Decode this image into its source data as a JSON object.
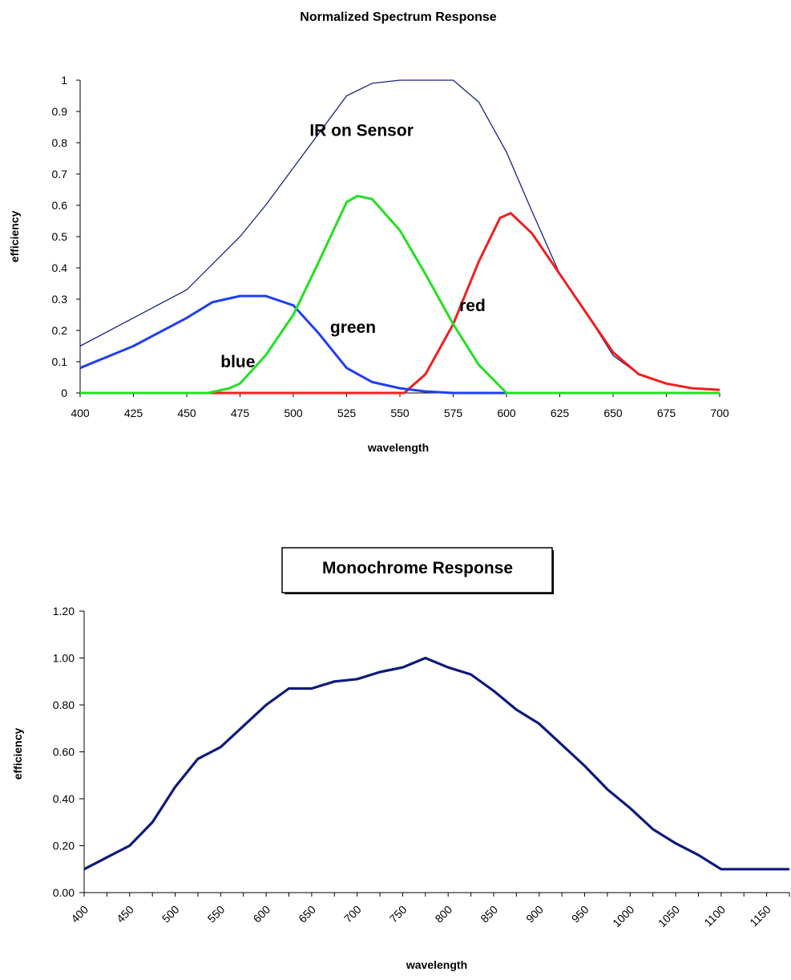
{
  "chart_data": [
    {
      "type": "line",
      "title": "Normalized Spectrum Response",
      "xlabel": "wavelength",
      "ylabel": "efficiency",
      "xlim": [
        400,
        700
      ],
      "ylim": [
        0,
        1
      ],
      "xticks": [
        "400",
        "425",
        "450",
        "475",
        "500",
        "525",
        "550",
        "575",
        "600",
        "625",
        "650",
        "675",
        "700"
      ],
      "yticks": [
        "0",
        "0.1",
        "0.2",
        "0.3",
        "0.4",
        "0.5",
        "0.6",
        "0.7",
        "0.8",
        "0.9",
        "1"
      ],
      "grid": false,
      "legend": "none",
      "series": [
        {
          "name": "IR on Sensor",
          "color": "#1a237e",
          "points": [
            [
              400,
              0.15
            ],
            [
              425,
              0.24
            ],
            [
              450,
              0.33
            ],
            [
              475,
              0.5
            ],
            [
              487,
              0.6
            ],
            [
              500,
              0.72
            ],
            [
              512,
              0.83
            ],
            [
              525,
              0.95
            ],
            [
              537,
              0.99
            ],
            [
              550,
              1.0
            ],
            [
              562,
              1.0
            ],
            [
              575,
              1.0
            ],
            [
              587,
              0.93
            ],
            [
              600,
              0.77
            ],
            [
              612,
              0.58
            ],
            [
              625,
              0.38
            ],
            [
              637,
              0.26
            ],
            [
              650,
              0.12
            ],
            [
              662,
              0.06
            ],
            [
              675,
              0.03
            ],
            [
              687,
              0.015
            ],
            [
              700,
              0.01
            ]
          ]
        },
        {
          "name": "blue",
          "color": "#1f3ff0",
          "points": [
            [
              400,
              0.08
            ],
            [
              425,
              0.15
            ],
            [
              450,
              0.24
            ],
            [
              462,
              0.29
            ],
            [
              475,
              0.31
            ],
            [
              487,
              0.31
            ],
            [
              500,
              0.28
            ],
            [
              512,
              0.19
            ],
            [
              525,
              0.08
            ],
            [
              537,
              0.035
            ],
            [
              550,
              0.015
            ],
            [
              562,
              0.005
            ],
            [
              575,
              0
            ],
            [
              600,
              0
            ],
            [
              700,
              0
            ]
          ]
        },
        {
          "name": "green",
          "color": "#22e022",
          "points": [
            [
              400,
              0
            ],
            [
              460,
              0
            ],
            [
              470,
              0.015
            ],
            [
              475,
              0.03
            ],
            [
              487,
              0.12
            ],
            [
              500,
              0.25
            ],
            [
              512,
              0.42
            ],
            [
              525,
              0.61
            ],
            [
              530,
              0.63
            ],
            [
              537,
              0.62
            ],
            [
              550,
              0.52
            ],
            [
              562,
              0.38
            ],
            [
              575,
              0.22
            ],
            [
              587,
              0.09
            ],
            [
              600,
              0
            ],
            [
              700,
              0
            ]
          ]
        },
        {
          "name": "red",
          "color": "#f01f1f",
          "points": [
            [
              400,
              0
            ],
            [
              552,
              0
            ],
            [
              562,
              0.06
            ],
            [
              575,
              0.22
            ],
            [
              587,
              0.42
            ],
            [
              597,
              0.56
            ],
            [
              602,
              0.575
            ],
            [
              612,
              0.51
            ],
            [
              625,
              0.38
            ],
            [
              637,
              0.26
            ],
            [
              650,
              0.13
            ],
            [
              662,
              0.06
            ],
            [
              675,
              0.03
            ],
            [
              687,
              0.015
            ],
            [
              700,
              0.01
            ]
          ]
        }
      ],
      "annotations": [
        {
          "text": "IR on Sensor",
          "x": 532,
          "y": 0.84
        },
        {
          "text": "green",
          "x": 528,
          "y": 0.21
        },
        {
          "text": "red",
          "x": 584,
          "y": 0.28
        },
        {
          "text": "blue",
          "x": 474,
          "y": 0.1
        }
      ]
    },
    {
      "type": "line",
      "title": "Monochrome Response",
      "xlabel": "wavelength",
      "ylabel": "efficiency",
      "xlim": [
        400,
        1175
      ],
      "ylim": [
        0,
        1.2
      ],
      "xticks": [
        "400",
        "450",
        "500",
        "550",
        "600",
        "650",
        "700",
        "750",
        "800",
        "850",
        "900",
        "950",
        "1000",
        "1050",
        "1100",
        "1150"
      ],
      "yticks": [
        "0.00",
        "0.20",
        "0.40",
        "0.60",
        "0.80",
        "1.00",
        "1.20"
      ],
      "grid": false,
      "legend": "none",
      "series": [
        {
          "color": "#0d1a7a",
          "points": [
            [
              400,
              0.1
            ],
            [
              425,
              0.15
            ],
            [
              450,
              0.2
            ],
            [
              475,
              0.3
            ],
            [
              500,
              0.45
            ],
            [
              525,
              0.57
            ],
            [
              550,
              0.62
            ],
            [
              575,
              0.71
            ],
            [
              600,
              0.8
            ],
            [
              625,
              0.87
            ],
            [
              650,
              0.87
            ],
            [
              675,
              0.9
            ],
            [
              700,
              0.91
            ],
            [
              725,
              0.94
            ],
            [
              750,
              0.96
            ],
            [
              775,
              1.0
            ],
            [
              800,
              0.96
            ],
            [
              825,
              0.93
            ],
            [
              850,
              0.86
            ],
            [
              875,
              0.78
            ],
            [
              900,
              0.72
            ],
            [
              925,
              0.63
            ],
            [
              950,
              0.54
            ],
            [
              975,
              0.44
            ],
            [
              1000,
              0.36
            ],
            [
              1025,
              0.27
            ],
            [
              1050,
              0.21
            ],
            [
              1075,
              0.16
            ],
            [
              1100,
              0.1
            ],
            [
              1125,
              0.1
            ],
            [
              1150,
              0.1
            ],
            [
              1175,
              0.1
            ]
          ]
        }
      ]
    }
  ]
}
